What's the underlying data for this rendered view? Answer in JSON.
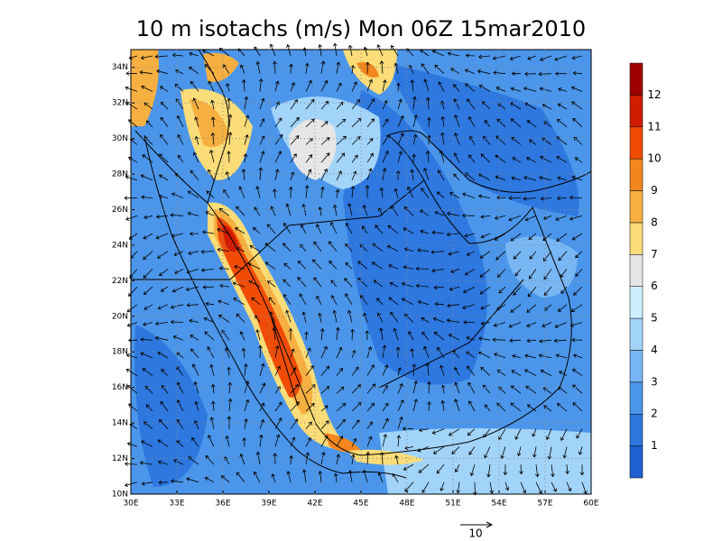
{
  "title": "10 m isotachs (m/s) Mon 06Z 15mar2010",
  "map": {
    "lon_range": [
      30,
      60
    ],
    "lat_range": [
      10,
      35
    ],
    "lon_ticks": [
      {
        "value": 30,
        "label": "30E"
      },
      {
        "value": 33,
        "label": "33E"
      },
      {
        "value": 36,
        "label": "36E"
      },
      {
        "value": 39,
        "label": "39E"
      },
      {
        "value": 42,
        "label": "42E"
      },
      {
        "value": 45,
        "label": "45E"
      },
      {
        "value": 48,
        "label": "48E"
      },
      {
        "value": 51,
        "label": "51E"
      },
      {
        "value": 54,
        "label": "54E"
      },
      {
        "value": 57,
        "label": "57E"
      },
      {
        "value": 60,
        "label": "60E"
      }
    ],
    "lat_ticks": [
      {
        "value": 10,
        "label": "10N"
      },
      {
        "value": 12,
        "label": "12N"
      },
      {
        "value": 14,
        "label": "14N"
      },
      {
        "value": 16,
        "label": "16N"
      },
      {
        "value": 18,
        "label": "18N"
      },
      {
        "value": 20,
        "label": "20N"
      },
      {
        "value": 22,
        "label": "22N"
      },
      {
        "value": 24,
        "label": "24N"
      },
      {
        "value": 26,
        "label": "26N"
      },
      {
        "value": 28,
        "label": "28N"
      },
      {
        "value": 30,
        "label": "30N"
      },
      {
        "value": 32,
        "label": "32N"
      },
      {
        "value": 34,
        "label": "34N"
      }
    ]
  },
  "colorbar": {
    "levels": [
      1,
      2,
      3,
      4,
      5,
      6,
      7,
      8,
      9,
      10,
      11,
      12
    ],
    "colors": [
      "#1e5fd2",
      "#2e78e0",
      "#4b96ea",
      "#78b6f4",
      "#a2d4fa",
      "#cdf0ff",
      "#e6e6e6",
      "#fadc78",
      "#f6b042",
      "#f3861e",
      "#f04c06",
      "#d01c00",
      "#a00000"
    ]
  },
  "reference_vector": 10
}
